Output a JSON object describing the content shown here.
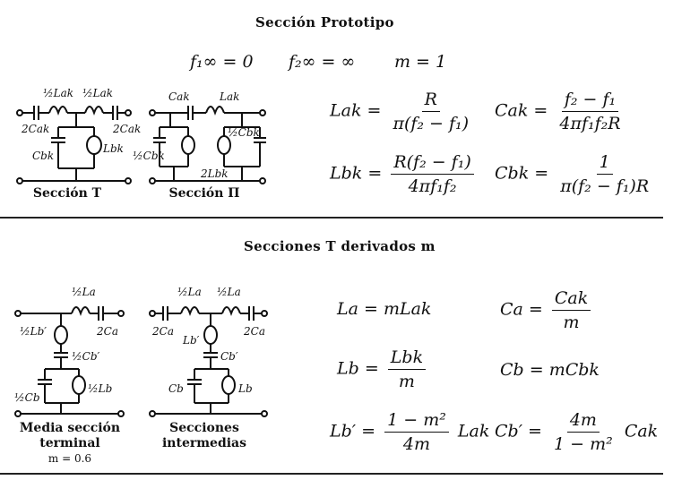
{
  "top": {
    "title": "Sección Prototipo",
    "params": {
      "f1": "f₁∞ = 0",
      "f2": "f₂∞ = ∞",
      "m": "m = 1"
    },
    "circuit_t_caption": "Sección T",
    "circuit_pi_caption": "Sección Π",
    "formulas": {
      "lak_lhs": "Lak =",
      "lak_num": "R",
      "lak_den": "π(f₂ − f₁)",
      "cak_lhs": "Cak =",
      "cak_num": "f₂ − f₁",
      "cak_den": "4πf₁f₂R",
      "lbk_lhs": "Lbk =",
      "lbk_num": "R(f₂ − f₁)",
      "lbk_den": "4πf₁f₂",
      "cbk_lhs": "Cbk =",
      "cbk_num": "1",
      "cbk_den": "π(f₂ − f₁)R"
    }
  },
  "bottom": {
    "title": "Secciones T derivados m",
    "caption_half_line1": "Media sección",
    "caption_half_line2": "terminal",
    "caption_half_m": "m = 0.6",
    "caption_inter_line1": "Secciones",
    "caption_inter_line2": "intermedias",
    "formulas": {
      "la": "La = mLak",
      "ca_lhs": "Ca =",
      "ca_num": "Cak",
      "ca_den": "m",
      "lb_lhs": "Lb =",
      "lb_num": "Lbk",
      "lb_den": "m",
      "cb": "Cb = mCbk",
      "lbp_lhs": "Lb′ =",
      "lbp_num": "1 − m²",
      "lbp_den": "4m",
      "lbp_rhs": "Lak",
      "cbp_lhs": "Cb′ =",
      "cbp_num": "4m",
      "cbp_den": "1 − m²",
      "cbp_rhs": "Cak"
    }
  },
  "circuit_labels": {
    "half_lak": "½Lak",
    "two_cak": "2Cak",
    "cbk": "Cbk",
    "lbk": "Lbk",
    "cak": "Cak",
    "lak": "Lak",
    "half_cbk": "½Cbk",
    "two_lbk": "2Lbk",
    "half_la": "½La",
    "two_ca": "2Ca",
    "half_lbp": "½Lb′",
    "half_cbp": "½Cb′",
    "half_cb": "½Cb",
    "half_lb": "½Lb",
    "lbp": "Lb′",
    "cbp": "Cb′",
    "cb": "Cb",
    "lb": "Lb"
  }
}
